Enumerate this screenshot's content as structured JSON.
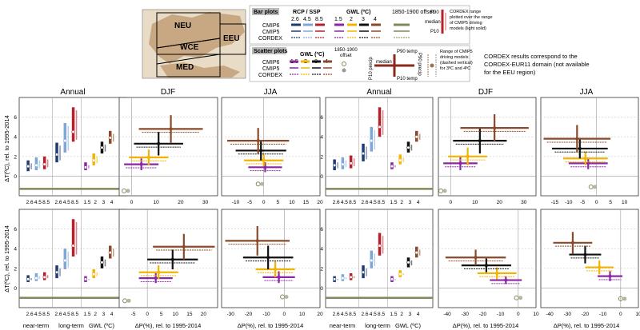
{
  "colors": {
    "rcp26": "#1f3b73",
    "rcp45": "#7ea7d8",
    "rcp85": "#b5202a",
    "gwl15": "#8b27a6",
    "gwl2": "#f2b400",
    "gwl3": "#111111",
    "gwl4": "#8a4a2a",
    "offset": "#7d8a5a",
    "grid": "#cccccc"
  },
  "map": {
    "regions": [
      "NEU",
      "WCE",
      "EEU",
      "MED"
    ]
  },
  "legend_bar": {
    "title": "Bar plots",
    "rcp_header": "RCP / SSP",
    "rcp_values": [
      "2.6",
      "4.5",
      "8.5"
    ],
    "gwl_header": "GWL (ºC)",
    "gwl_values": [
      "1.5",
      "2",
      "3",
      "4"
    ],
    "offset_label": "1850-1900 offset",
    "rows": [
      "CMIP6",
      "CMIP5",
      "CORDEX"
    ],
    "p90": "P90",
    "median": "median",
    "p10": "P10",
    "cordex_note": [
      "CORDEX range",
      "plotted over the range",
      "of CMIP5 driving",
      "models (light solid)"
    ]
  },
  "legend_scatter": {
    "title": "Scatter plots",
    "gwl_header": "GWL (ºC)",
    "gwl_values": [
      "1.5",
      "2",
      "3",
      "4"
    ],
    "offset_label": [
      "1850-1900",
      "offset"
    ],
    "rows": [
      "CMIP6",
      "CMIP5",
      "CORDEX"
    ],
    "p90_temp": "P90 temp",
    "p10_temp": "P10 temp",
    "median": "median",
    "p10_precip": "P10 precip",
    "p90_precip": "P90 precip",
    "cmip5_note": [
      "Range of CMIP5",
      "driving models",
      "(dashed vertical)",
      "for 3ºC and 4ºC"
    ]
  },
  "cordex_note": [
    "CORDEX results correspond to the",
    "CORDEX-EUR11 domain (not available",
    "for the EEU region)"
  ],
  "column_titles": [
    "Annual",
    "DJF",
    "JJA",
    "Annual",
    "DJF",
    "JJA"
  ],
  "ylabel": "ΔT(ºC), rel. to 1995-2014",
  "xlabel_precip": "ΔP(%), rel. to 1995-2014",
  "bar_ticks": [
    "2.6",
    "4.5",
    "8.5",
    "2.6",
    "4.5",
    "8.5",
    "1.5",
    "2",
    "3",
    "4"
  ],
  "bar_xlabels": [
    "near-term",
    "long-term",
    "GWL (ºC)"
  ],
  "chart_data": [
    {
      "type": "bar",
      "region": "NEU",
      "title": "Annual",
      "ylim": [
        -2,
        8
      ],
      "yticks": [
        0,
        2,
        4,
        6
      ],
      "offset": -1.3,
      "groups": [
        {
          "p10": 0.5,
          "med": 1.0,
          "p90": 1.6
        },
        {
          "p10": 0.6,
          "med": 1.1,
          "p90": 1.9
        },
        {
          "p10": 0.7,
          "med": 1.2,
          "p90": 2.0
        },
        {
          "p10": 1.4,
          "med": 2.2,
          "p90": 3.4
        },
        {
          "p10": 2.4,
          "med": 3.6,
          "p90": 5.4
        },
        {
          "p10": 3.5,
          "med": 4.5,
          "p90": 7.0
        },
        {
          "p10": 0.6,
          "med": 0.9,
          "p90": 1.4
        },
        {
          "p10": 1.1,
          "med": 1.6,
          "p90": 2.3
        },
        {
          "p10": 2.3,
          "med": 2.9,
          "p90": 3.5
        },
        {
          "p10": 3.3,
          "med": 3.9,
          "p90": 4.6
        }
      ]
    },
    {
      "type": "scatter",
      "region": "NEU",
      "title": "DJF",
      "xlim": [
        -5,
        35
      ],
      "ylim": [
        -2,
        8
      ],
      "xticks": [
        0,
        10,
        20,
        30
      ],
      "yticks": [
        0,
        2,
        4,
        6
      ],
      "points": [
        {
          "x": 4,
          "y": 1.2,
          "dx": 7,
          "dy": 0.6
        },
        {
          "x": 7,
          "y": 1.9,
          "dx": 8,
          "dy": 0.8
        },
        {
          "x": 11,
          "y": 3.3,
          "dx": 10,
          "dy": 1.2
        },
        {
          "x": 16,
          "y": 4.8,
          "dx": 13,
          "dy": 1.4
        }
      ],
      "offset": [
        -3,
        -1.5
      ]
    },
    {
      "type": "scatter",
      "region": "NEU",
      "title": "JJA",
      "xlim": [
        -15,
        20
      ],
      "ylim": [
        -2,
        8
      ],
      "xticks": [
        -10,
        -5,
        0,
        5,
        10,
        15,
        20
      ],
      "yticks": [
        0,
        2,
        4,
        6
      ],
      "points": [
        {
          "x": 0.5,
          "y": 0.9,
          "dx": 6,
          "dy": 0.5
        },
        {
          "x": 0,
          "y": 1.6,
          "dx": 7,
          "dy": 0.6
        },
        {
          "x": -1,
          "y": 2.6,
          "dx": 9,
          "dy": 1.0
        },
        {
          "x": -2,
          "y": 3.6,
          "dx": 11,
          "dy": 1.3
        }
      ],
      "offset": [
        -2,
        -0.8
      ]
    },
    {
      "type": "bar",
      "region": "EEU",
      "title": "Annual",
      "ylim": [
        -2,
        8
      ],
      "yticks": [
        0,
        2,
        4,
        6
      ],
      "offset": -1.3,
      "groups": [
        {
          "p10": 0.6,
          "med": 1.1,
          "p90": 1.7
        },
        {
          "p10": 0.7,
          "med": 1.2,
          "p90": 1.9
        },
        {
          "p10": 0.8,
          "med": 1.3,
          "p90": 2.1
        },
        {
          "p10": 1.5,
          "med": 2.3,
          "p90": 3.3
        },
        {
          "p10": 2.5,
          "med": 3.6,
          "p90": 5.0
        },
        {
          "p10": 4.0,
          "med": 5.0,
          "p90": 7.0
        },
        {
          "p10": 0.7,
          "med": 1.0,
          "p90": 1.4
        },
        {
          "p10": 1.2,
          "med": 1.6,
          "p90": 2.2
        },
        {
          "p10": 2.4,
          "med": 2.9,
          "p90": 3.5
        },
        {
          "p10": 3.5,
          "med": 4.0,
          "p90": 4.6
        }
      ]
    },
    {
      "type": "scatter",
      "region": "EEU",
      "title": "DJF",
      "xlim": [
        -5,
        35
      ],
      "ylim": [
        -2,
        8
      ],
      "xticks": [
        0,
        10,
        20,
        30
      ],
      "yticks": [
        0,
        2,
        4,
        6
      ],
      "points": [
        {
          "x": 4,
          "y": 1.3,
          "dx": 7,
          "dy": 0.7
        },
        {
          "x": 7,
          "y": 2.0,
          "dx": 8,
          "dy": 0.9
        },
        {
          "x": 12,
          "y": 3.6,
          "dx": 11,
          "dy": 1.3
        },
        {
          "x": 18,
          "y": 4.9,
          "dx": 14,
          "dy": 1.4
        }
      ],
      "offset": [
        -4,
        -1.5
      ]
    },
    {
      "type": "scatter",
      "region": "EEU",
      "title": "JJA",
      "xlim": [
        -20,
        15
      ],
      "ylim": [
        -2,
        8
      ],
      "xticks": [
        -15,
        -10,
        -5,
        0,
        5,
        10
      ],
      "yticks": [
        0,
        2,
        4,
        6
      ],
      "points": [
        {
          "x": -3,
          "y": 1.3,
          "dx": 7,
          "dy": 0.6
        },
        {
          "x": -4,
          "y": 1.8,
          "dx": 8,
          "dy": 0.7
        },
        {
          "x": -6,
          "y": 2.8,
          "dx": 10,
          "dy": 1.0
        },
        {
          "x": -7,
          "y": 3.8,
          "dx": 12,
          "dy": 1.4
        }
      ],
      "offset": [
        -2,
        -1.1
      ]
    },
    {
      "type": "bar",
      "region": "WCE",
      "title": "Annual",
      "ylim": [
        -2,
        8
      ],
      "yticks": [
        0,
        2,
        4,
        6
      ],
      "offset": -1.0,
      "groups": [
        {
          "p10": 0.6,
          "med": 0.9,
          "p90": 1.3
        },
        {
          "p10": 0.7,
          "med": 1.0,
          "p90": 1.5
        },
        {
          "p10": 0.8,
          "med": 1.1,
          "p90": 1.6
        },
        {
          "p10": 1.0,
          "med": 1.6,
          "p90": 2.3
        },
        {
          "p10": 1.9,
          "med": 2.8,
          "p90": 4.0
        },
        {
          "p10": 3.2,
          "med": 4.3,
          "p90": 7.0
        },
        {
          "p10": 0.6,
          "med": 0.9,
          "p90": 1.2
        },
        {
          "p10": 1.0,
          "med": 1.4,
          "p90": 1.9
        },
        {
          "p10": 2.0,
          "med": 2.6,
          "p90": 3.2
        },
        {
          "p10": 3.0,
          "med": 3.6,
          "p90": 4.3
        }
      ]
    },
    {
      "type": "scatter",
      "region": "WCE",
      "title": "DJF",
      "xlim": [
        -10,
        25
      ],
      "ylim": [
        -2,
        8
      ],
      "xticks": [
        -5,
        0,
        5,
        10,
        15,
        20
      ],
      "yticks": [
        0,
        2,
        4,
        6
      ],
      "points": [
        {
          "x": 3,
          "y": 1.0,
          "dx": 6,
          "dy": 0.5
        },
        {
          "x": 4,
          "y": 1.6,
          "dx": 7,
          "dy": 0.7
        },
        {
          "x": 9,
          "y": 2.9,
          "dx": 9,
          "dy": 1.0
        },
        {
          "x": 13,
          "y": 4.2,
          "dx": 11,
          "dy": 1.3
        }
      ],
      "offset": [
        -8,
        -1.3
      ]
    },
    {
      "type": "scatter",
      "region": "WCE",
      "title": "JJA",
      "xlim": [
        -35,
        20
      ],
      "ylim": [
        -2,
        8
      ],
      "xticks": [
        -30,
        -20,
        -10,
        0,
        10,
        20
      ],
      "yticks": [
        0,
        2,
        4,
        6
      ],
      "points": [
        {
          "x": -3,
          "y": 1.1,
          "dx": 9,
          "dy": 0.6
        },
        {
          "x": -5,
          "y": 1.9,
          "dx": 11,
          "dy": 0.8
        },
        {
          "x": -9,
          "y": 3.1,
          "dx": 14,
          "dy": 1.2
        },
        {
          "x": -15,
          "y": 4.8,
          "dx": 18,
          "dy": 1.5
        }
      ],
      "offset": [
        -1,
        -0.9
      ]
    },
    {
      "type": "bar",
      "region": "MED",
      "title": "Annual",
      "ylim": [
        -2,
        8
      ],
      "yticks": [
        0,
        2,
        4,
        6
      ],
      "offset": -1.0,
      "groups": [
        {
          "p10": 0.6,
          "med": 0.9,
          "p90": 1.2
        },
        {
          "p10": 0.7,
          "med": 1.0,
          "p90": 1.4
        },
        {
          "p10": 0.8,
          "med": 1.1,
          "p90": 1.5
        },
        {
          "p10": 1.0,
          "med": 1.6,
          "p90": 2.3
        },
        {
          "p10": 2.0,
          "med": 2.8,
          "p90": 3.8
        },
        {
          "p10": 3.3,
          "med": 4.3,
          "p90": 5.6
        },
        {
          "p10": 0.6,
          "med": 0.9,
          "p90": 1.2
        },
        {
          "p10": 1.1,
          "med": 1.4,
          "p90": 1.8
        },
        {
          "p10": 2.1,
          "med": 2.6,
          "p90": 3.1
        },
        {
          "p10": 3.1,
          "med": 3.6,
          "p90": 4.2
        }
      ]
    },
    {
      "type": "scatter",
      "region": "MED",
      "title": "DJF",
      "xlim": [
        -45,
        10
      ],
      "ylim": [
        -2,
        8
      ],
      "xticks": [
        -40,
        -30,
        -20,
        -10,
        0,
        10
      ],
      "yticks": [
        0,
        2,
        4,
        6
      ],
      "points": [
        {
          "x": -7,
          "y": 0.8,
          "dx": 9,
          "dy": 0.4
        },
        {
          "x": -12,
          "y": 1.5,
          "dx": 11,
          "dy": 0.6
        },
        {
          "x": -18,
          "y": 2.3,
          "dx": 14,
          "dy": 0.7
        },
        {
          "x": -24,
          "y": 3.1,
          "dx": 17,
          "dy": 0.8
        }
      ],
      "offset": [
        -1,
        -1.0
      ]
    },
    {
      "type": "scatter",
      "region": "MED",
      "title": "JJA",
      "xlim": [
        -45,
        10
      ],
      "ylim": [
        -2,
        8
      ],
      "xticks": [
        -40,
        -30,
        -20,
        -10,
        0,
        10
      ],
      "yticks": [
        0,
        2,
        4,
        6
      ],
      "points": [
        {
          "x": -6,
          "y": 1.2,
          "dx": 7,
          "dy": 0.5
        },
        {
          "x": -12,
          "y": 2.1,
          "dx": 8,
          "dy": 0.7
        },
        {
          "x": -20,
          "y": 3.4,
          "dx": 9,
          "dy": 0.9
        },
        {
          "x": -27,
          "y": 4.6,
          "dx": 11,
          "dy": 1.1
        }
      ],
      "offset": [
        0,
        -1.1
      ]
    }
  ]
}
